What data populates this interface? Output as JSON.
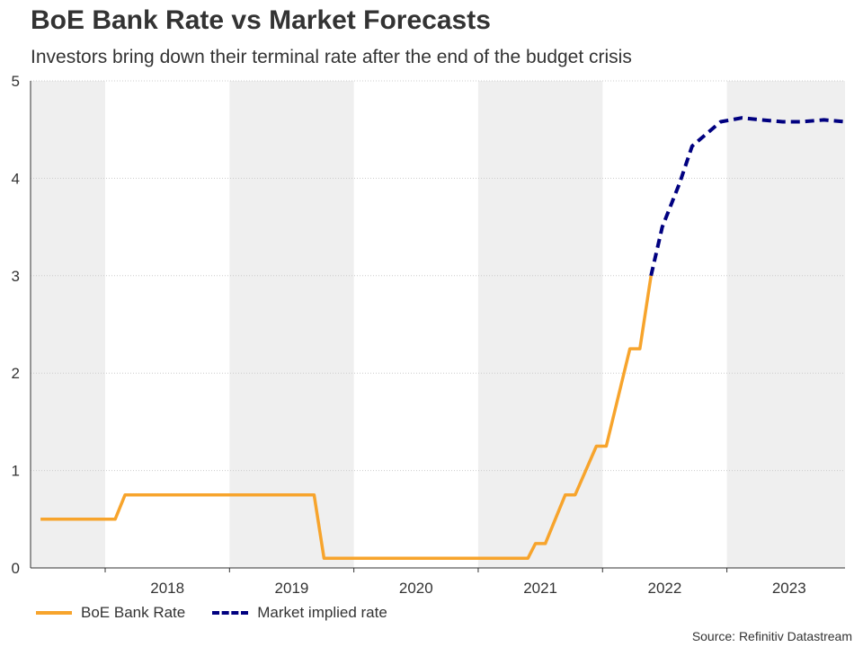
{
  "chart_data": {
    "type": "line",
    "title": "BoE Bank Rate vs Market Forecasts",
    "subtitle": "Investors bring down their terminal rate after the end of the budget crisis",
    "xlabel": "",
    "ylabel": "",
    "xlim": [
      2017.4,
      2023.95
    ],
    "ylim": [
      0,
      5
    ],
    "yticks": [
      0,
      1,
      2,
      3,
      4,
      5
    ],
    "xticks": [
      {
        "label": "2018",
        "center": 2018.5
      },
      {
        "label": "2019",
        "center": 2019.5
      },
      {
        "label": "2020",
        "center": 2020.5
      },
      {
        "label": "2021",
        "center": 2021.5
      },
      {
        "label": "2022",
        "center": 2022.5
      },
      {
        "label": "2023",
        "center": 2023.5
      }
    ],
    "shaded_years": [
      {
        "start": 2017.4,
        "end": 2018.0
      },
      {
        "start": 2019.0,
        "end": 2020.0
      },
      {
        "start": 2021.0,
        "end": 2022.0
      },
      {
        "start": 2023.0,
        "end": 2023.95
      }
    ],
    "series": [
      {
        "name": "BoE Bank Rate",
        "color": "#f7a42c",
        "style": "solid",
        "points": [
          [
            2017.48,
            0.5
          ],
          [
            2018.08,
            0.5
          ],
          [
            2018.16,
            0.75
          ],
          [
            2019.68,
            0.75
          ],
          [
            2019.76,
            0.1
          ],
          [
            2021.4,
            0.1
          ],
          [
            2021.46,
            0.25
          ],
          [
            2021.54,
            0.25
          ],
          [
            2021.7,
            0.75
          ],
          [
            2021.78,
            0.75
          ],
          [
            2021.95,
            1.25
          ],
          [
            2022.03,
            1.25
          ],
          [
            2022.22,
            2.25
          ],
          [
            2022.3,
            2.25
          ],
          [
            2022.39,
            3.0
          ]
        ]
      },
      {
        "name": "Market implied rate",
        "color": "#000080",
        "style": "dashed",
        "points": [
          [
            2022.39,
            3.0
          ],
          [
            2022.48,
            3.5
          ],
          [
            2022.62,
            3.95
          ],
          [
            2022.72,
            4.33
          ],
          [
            2022.95,
            4.58
          ],
          [
            2023.12,
            4.62
          ],
          [
            2023.28,
            4.6
          ],
          [
            2023.45,
            4.58
          ],
          [
            2023.6,
            4.58
          ],
          [
            2023.78,
            4.6
          ],
          [
            2023.95,
            4.58
          ]
        ]
      }
    ],
    "legend_position": "bottom-left"
  },
  "source": "Source: Refinitiv Datastream"
}
